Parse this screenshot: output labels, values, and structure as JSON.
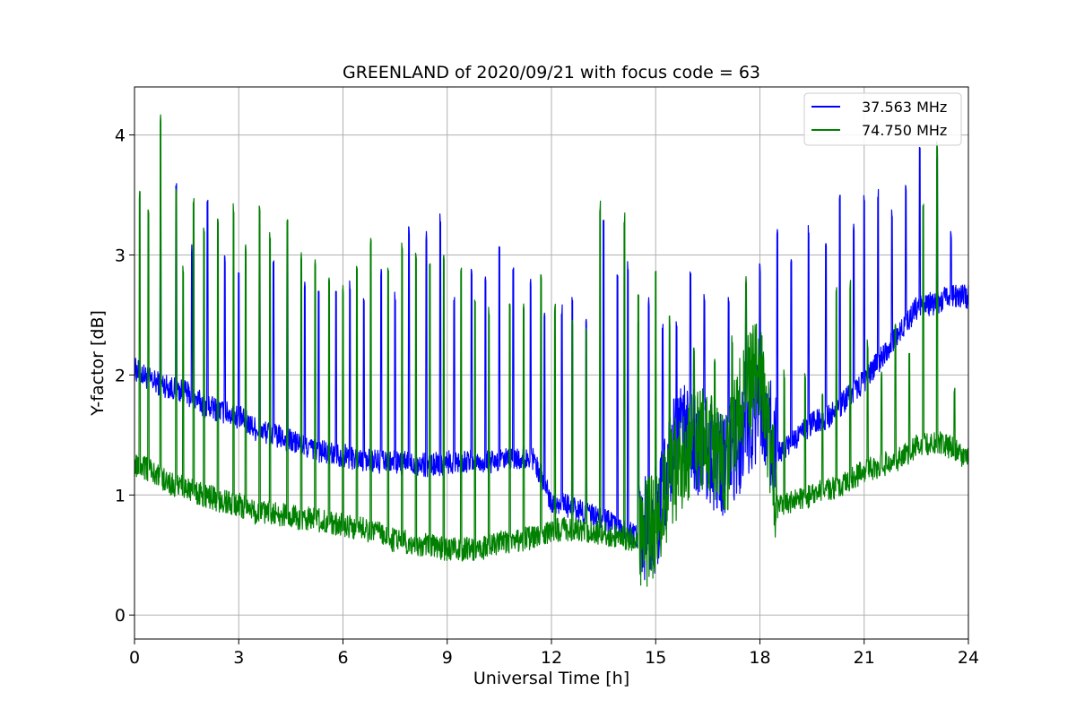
{
  "chart_data": {
    "type": "line",
    "title": "GREENLAND of 2020/09/21 with focus code = 63",
    "xlabel": "Universal Time [h]",
    "ylabel": "Y-factor [dB]",
    "xlim": [
      0,
      24
    ],
    "ylim": [
      -0.2,
      4.4
    ],
    "xticks": [
      0,
      3,
      6,
      9,
      12,
      15,
      18,
      21,
      24
    ],
    "yticks": [
      0,
      1,
      2,
      3,
      4
    ],
    "grid": true,
    "legend_position": "top-right",
    "series": [
      {
        "name": "37.563 MHz",
        "color": "#0000ff",
        "x": [
          0,
          0.5,
          1,
          1.5,
          2,
          2.5,
          3,
          3.5,
          4,
          4.5,
          5,
          5.5,
          6,
          6.5,
          7,
          7.5,
          8,
          8.5,
          9,
          9.5,
          10,
          10.5,
          11,
          11.5,
          12,
          12.5,
          13,
          13.5,
          14,
          14.5,
          15,
          15.5,
          16,
          16.5,
          17,
          17.5,
          18,
          18.5,
          19,
          19.5,
          20,
          20.5,
          21,
          21.5,
          22,
          22.5,
          23,
          23.5,
          24
        ],
        "y": [
          2.05,
          1.95,
          1.9,
          1.85,
          1.75,
          1.7,
          1.65,
          1.55,
          1.5,
          1.45,
          1.4,
          1.35,
          1.33,
          1.3,
          1.28,
          1.27,
          1.26,
          1.25,
          1.27,
          1.28,
          1.27,
          1.28,
          1.3,
          1.3,
          0.95,
          0.9,
          0.85,
          0.8,
          0.7,
          0.65,
          0.8,
          1.4,
          1.5,
          1.35,
          1.25,
          1.5,
          1.75,
          1.35,
          1.45,
          1.6,
          1.65,
          1.8,
          1.95,
          2.15,
          2.35,
          2.55,
          2.6,
          2.65,
          2.65
        ],
        "spike_x": [
          0.75,
          1.2,
          1.65,
          2.1,
          2.6,
          3.0,
          3.6,
          4.0,
          4.4,
          4.9,
          5.3,
          5.8,
          6.2,
          6.6,
          7.1,
          7.5,
          7.9,
          8.4,
          8.8,
          9.2,
          9.7,
          10.1,
          10.5,
          10.9,
          11.4,
          11.8,
          12.3,
          12.6,
          13.0,
          13.5,
          13.9,
          14.2,
          14.5,
          14.8,
          15.2,
          15.6,
          16.0,
          16.4,
          17.1,
          17.6,
          18.0,
          18.5,
          18.9,
          19.4,
          19.9,
          20.3,
          20.7,
          21.0,
          21.4,
          21.8,
          22.2,
          22.6,
          23.1,
          23.5
        ],
        "spike_y": [
          3.5,
          3.6,
          3.1,
          3.5,
          3.0,
          2.9,
          3.05,
          3.0,
          3.2,
          2.8,
          2.75,
          2.7,
          2.8,
          2.65,
          2.9,
          2.7,
          3.25,
          3.2,
          3.35,
          2.65,
          2.9,
          2.85,
          3.15,
          2.95,
          2.8,
          2.55,
          2.6,
          2.65,
          2.5,
          3.35,
          2.85,
          2.95,
          2.5,
          2.65,
          2.45,
          2.45,
          2.9,
          2.7,
          2.65,
          2.8,
          2.95,
          3.25,
          3.0,
          3.25,
          3.1,
          3.5,
          3.3,
          3.5,
          3.55,
          3.4,
          3.6,
          3.9,
          3.85,
          3.2
        ]
      },
      {
        "name": "74.750 MHz",
        "color": "#008000",
        "x": [
          0,
          0.5,
          1,
          1.5,
          2,
          2.5,
          3,
          3.5,
          4,
          4.5,
          5,
          5.5,
          6,
          6.5,
          7,
          7.5,
          8,
          8.5,
          9,
          9.5,
          10,
          10.5,
          11,
          11.5,
          12,
          12.5,
          13,
          13.5,
          14,
          14.5,
          15,
          15.5,
          16,
          16.5,
          17,
          17.5,
          18,
          18.5,
          19,
          19.5,
          20,
          20.5,
          21,
          21.5,
          22,
          22.5,
          23,
          23.5,
          24
        ],
        "y": [
          1.25,
          1.2,
          1.1,
          1.05,
          1.0,
          0.95,
          0.92,
          0.85,
          0.85,
          0.82,
          0.8,
          0.78,
          0.75,
          0.72,
          0.68,
          0.62,
          0.6,
          0.58,
          0.55,
          0.55,
          0.55,
          0.6,
          0.62,
          0.65,
          0.7,
          0.72,
          0.7,
          0.68,
          0.65,
          0.62,
          0.75,
          1.2,
          1.4,
          1.45,
          1.2,
          1.8,
          2.1,
          0.9,
          0.95,
          1.0,
          1.05,
          1.1,
          1.2,
          1.25,
          1.3,
          1.4,
          1.45,
          1.4,
          1.3
        ],
        "spike_x": [
          0.15,
          0.4,
          0.75,
          1.2,
          1.4,
          1.7,
          2.0,
          2.4,
          2.85,
          3.2,
          3.6,
          3.9,
          4.4,
          4.8,
          5.2,
          5.6,
          6.0,
          6.4,
          6.8,
          7.3,
          7.7,
          8.1,
          8.5,
          8.9,
          9.4,
          9.8,
          10.2,
          10.8,
          11.2,
          11.7,
          12.1,
          12.6,
          13.0,
          13.4,
          14.1,
          14.5,
          15.0,
          15.4,
          16.1,
          16.7,
          17.2,
          17.6,
          18.1,
          18.7,
          19.3,
          19.8,
          20.2,
          20.6,
          21.1,
          21.5,
          21.9,
          22.3,
          22.7,
          23.1,
          23.6
        ],
        "spike_y": [
          3.55,
          3.4,
          4.2,
          3.55,
          2.95,
          3.5,
          3.25,
          3.35,
          3.45,
          3.1,
          3.45,
          3.2,
          3.3,
          3.05,
          3.0,
          2.85,
          2.75,
          2.95,
          3.15,
          2.9,
          3.1,
          3.05,
          3.0,
          3.05,
          2.9,
          2.65,
          2.6,
          2.6,
          2.6,
          2.9,
          2.6,
          2.5,
          2.45,
          3.45,
          3.35,
          2.75,
          2.9,
          2.5,
          2.25,
          2.15,
          2.35,
          2.85,
          2.2,
          2.05,
          2.05,
          1.9,
          2.75,
          2.8,
          2.3,
          2.05,
          2.45,
          2.2,
          3.45,
          3.95,
          1.95
        ]
      }
    ]
  }
}
